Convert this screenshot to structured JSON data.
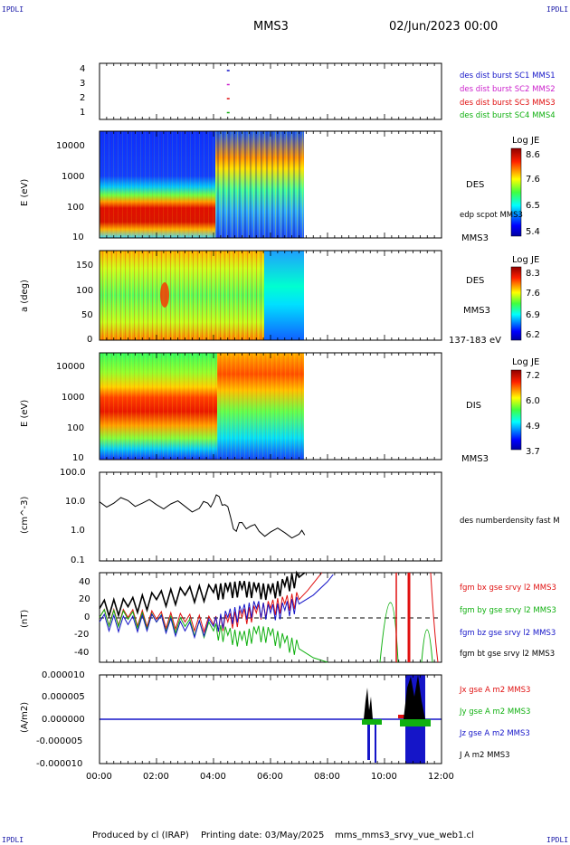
{
  "header": {
    "corner_left_top": "IPDLI",
    "corner_right_top": "IPDLI",
    "corner_left_bottom": "IPDLI",
    "corner_right_bottom": "IPDLI",
    "spacecraft": "MMS3",
    "date": "02/Jun/2023 00:00"
  },
  "footer": {
    "produced": "Produced by cl (IRAP)",
    "printing": "Printing date: 03/May/2025",
    "file": "mms_mms3_srvy_vue_web1.cl"
  },
  "time_axis": {
    "labels": [
      "00:00",
      "02:00",
      "04:00",
      "06:00",
      "08:00",
      "10:00",
      "12:00"
    ],
    "range_hours": [
      0,
      12
    ]
  },
  "panels": {
    "burst": {
      "yticks": [
        "4",
        "3",
        "2",
        "1"
      ],
      "legend": [
        {
          "text": "des dist burst SC1 MMS1",
          "color": "#1515c8"
        },
        {
          "text": "des dist burst SC2 MMS2",
          "color": "#cc22cc"
        },
        {
          "text": "des dist burst SC3 MMS3",
          "color": "#e01010"
        },
        {
          "text": "des dist burst SC4 MMS4",
          "color": "#10b010"
        }
      ]
    },
    "des_energy": {
      "ylabel": "E (eV)",
      "yticks": [
        "10000",
        "1000",
        "100",
        "10"
      ],
      "instrument": "DES",
      "overlay": "edp scpot MMS3",
      "spacecraft": "MMS3",
      "cbar_title": "Log JE",
      "cbar_ticks": [
        "8.6",
        "7.6",
        "6.5",
        "5.4"
      ]
    },
    "des_pitch": {
      "ylabel": "a (deg)",
      "yticks": [
        "150",
        "100",
        "50",
        "0"
      ],
      "instrument": "DES",
      "spacecraft": "MMS3",
      "energy_range": "137-183 eV",
      "cbar_title": "Log JE",
      "cbar_ticks": [
        "8.3",
        "7.6",
        "6.9",
        "6.2"
      ]
    },
    "dis_energy": {
      "ylabel": "E (eV)",
      "yticks": [
        "10000",
        "1000",
        "100",
        "10"
      ],
      "instrument": "DIS",
      "spacecraft": "MMS3",
      "cbar_title": "Log JE",
      "cbar_ticks": [
        "7.2",
        "6.0",
        "4.9",
        "3.7"
      ]
    },
    "density": {
      "ylabel": "(cm^-3)",
      "yticks": [
        "100.0",
        "10.0",
        "1.0",
        "0.1"
      ],
      "legend": "des numberdensity fast M"
    },
    "bfield": {
      "ylabel": "(nT)",
      "yticks": [
        "40",
        "20",
        "0",
        "-20",
        "-40"
      ],
      "legend": [
        {
          "text": "fgm bx gse srvy l2 MMS3",
          "color": "#e01010"
        },
        {
          "text": "fgm by gse srvy l2 MMS3",
          "color": "#10b010"
        },
        {
          "text": "fgm bz gse srvy l2 MMS3",
          "color": "#1515c8"
        },
        {
          "text": "fgm bt gse srvy l2 MMS3",
          "color": "#000000"
        }
      ]
    },
    "current": {
      "ylabel": "(A/m2)",
      "yticks": [
        "0.000010",
        "0.000005",
        "0.000000",
        "-0.000005",
        "-0.000010"
      ],
      "legend": [
        {
          "text": "Jx gse A m2 MMS3",
          "color": "#e01010"
        },
        {
          "text": "Jy gse A m2 MMS3",
          "color": "#10b010"
        },
        {
          "text": "Jz gse A m2 MMS3",
          "color": "#1515c8"
        },
        {
          "text": "J A m2 MMS3",
          "color": "#000000"
        }
      ]
    }
  },
  "chart_data": [
    {
      "type": "scatter",
      "panel": "burst",
      "x_hours": [
        4.5,
        4.5,
        4.5,
        4.5
      ],
      "values": [
        4,
        3,
        2,
        1
      ],
      "ylim": [
        0.5,
        4.5
      ]
    },
    {
      "type": "heatmap",
      "panel": "des_energy",
      "ylim": [
        10,
        30000
      ],
      "log_y": true,
      "data_end_hours": 7.2,
      "clim": [
        5.4,
        8.6
      ]
    },
    {
      "type": "heatmap",
      "panel": "des_pitch",
      "ylim": [
        0,
        180
      ],
      "data_end_hours": 7.2,
      "clim": [
        6.2,
        8.3
      ]
    },
    {
      "type": "heatmap",
      "panel": "dis_energy",
      "ylim": [
        10,
        30000
      ],
      "log_y": true,
      "data_end_hours": 7.2,
      "clim": [
        3.7,
        7.2
      ]
    },
    {
      "type": "line",
      "panel": "density",
      "log_y": true,
      "ylim": [
        0.1,
        100
      ],
      "x": [
        0,
        0.5,
        1,
        1.5,
        2,
        2.5,
        3,
        3.5,
        3.8,
        4,
        4.2,
        4.4,
        4.6,
        4.8,
        5,
        5.3,
        5.6,
        6,
        6.5,
        7,
        7.2
      ],
      "values": [
        10,
        9,
        11,
        9,
        8,
        8.5,
        7,
        6,
        9,
        10,
        15,
        8,
        3,
        1,
        2,
        1.5,
        1,
        0.95,
        0.9,
        0.8,
        0.75
      ]
    },
    {
      "type": "line",
      "panel": "bfield",
      "ylim": [
        -50,
        50
      ],
      "x_range": [
        0,
        12
      ],
      "series": [
        {
          "name": "fgm bx gse srvy l2 MMS3",
          "x": [
            0,
            1,
            2,
            3,
            4,
            4.5,
            5,
            5.5,
            6,
            6.5,
            7,
            7.3,
            7.8
          ],
          "values": [
            0,
            0,
            -2,
            -5,
            -8,
            -5,
            0,
            5,
            10,
            15,
            20,
            30,
            50
          ]
        },
        {
          "name": "fgm by gse srvy l2 MMS3",
          "x": [
            0,
            1,
            2,
            3,
            4,
            4.5,
            5,
            5.5,
            6,
            6.5,
            7,
            7.5,
            8
          ],
          "values": [
            0,
            -2,
            -5,
            -10,
            -15,
            -20,
            -25,
            -18,
            -20,
            -28,
            -35,
            -45,
            -55
          ]
        },
        {
          "name": "fgm bz gse srvy l2 MMS3",
          "x": [
            0,
            1,
            2,
            3,
            4,
            4.5,
            5,
            5.5,
            6,
            6.5,
            7,
            7.5,
            8,
            8.2
          ],
          "values": [
            -5,
            -8,
            -5,
            -15,
            -10,
            0,
            5,
            10,
            5,
            8,
            15,
            25,
            40,
            48
          ]
        },
        {
          "name": "fgm bt gse srvy l2 MMS3",
          "x": [
            0,
            1,
            2,
            3,
            4,
            4.5,
            5,
            5.5,
            6,
            6.5,
            7,
            7.2
          ],
          "values": [
            10,
            12,
            20,
            25,
            28,
            30,
            32,
            30,
            28,
            35,
            45,
            50
          ]
        }
      ]
    },
    {
      "type": "line",
      "panel": "current",
      "ylim": [
        -1e-05,
        1e-05
      ],
      "x_range": [
        0,
        12
      ],
      "series": [
        {
          "name": "J A m2 MMS3",
          "x": [
            0,
            8,
            9.3,
            9.5,
            9.7,
            10.5,
            10.8,
            11,
            11.2,
            11.5
          ],
          "values": [
            0,
            0,
            4e-06,
            7e-06,
            1e-06,
            1e-06,
            5e-06,
            1e-05,
            8e-06,
            1e-06
          ]
        },
        {
          "name": "Jz gse A m2 MMS3",
          "x": [
            0,
            8,
            9.4,
            9.6,
            9.8,
            10.8,
            11,
            11.3,
            11.5
          ],
          "values": [
            0,
            0,
            -5e-06,
            -9e-06,
            0,
            -4e-06,
            -1e-05,
            -8e-06,
            0
          ]
        }
      ]
    }
  ]
}
